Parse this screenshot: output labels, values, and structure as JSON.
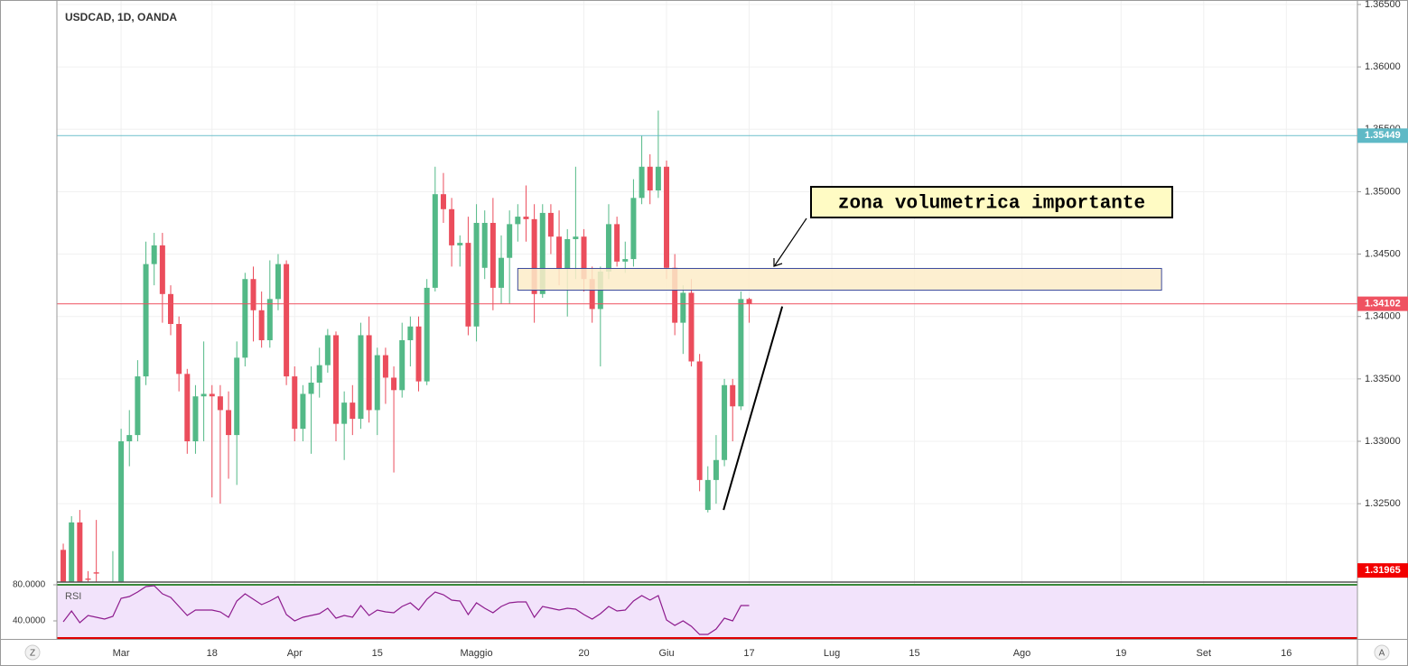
{
  "chart_data": {
    "type": "candlestick",
    "title": "USDCAD, 1D, OANDA",
    "up_color": "#53b987",
    "down_color": "#eb4d5c",
    "open": [
      1.3213,
      1.318,
      1.3235,
      1.319,
      1.3195,
      1.318,
      1.3186,
      1.318,
      1.33,
      1.3305,
      1.3352,
      1.3442,
      1.3457,
      1.3418,
      1.3394,
      1.3354,
      1.33,
      1.3336,
      1.3338,
      1.3336,
      1.3325,
      1.3305,
      1.3367,
      1.343,
      1.3405,
      1.3381,
      1.3414,
      1.3442,
      1.3352,
      1.331,
      1.3338,
      1.3347,
      1.3361,
      1.3385,
      1.3314,
      1.3331,
      1.3318,
      1.3385,
      1.3325,
      1.3369,
      1.3351,
      1.3341,
      1.3381,
      1.3392,
      1.3348,
      1.3423,
      1.3498,
      1.3486,
      1.3457,
      1.3459,
      1.3392,
      1.3439,
      1.3475,
      1.3423,
      1.3447,
      1.3474,
      1.348,
      1.3478,
      1.3418,
      1.3483,
      1.3464,
      1.3438,
      1.3462,
      1.3464,
      1.343,
      1.3406,
      1.3436,
      1.3474,
      1.3444,
      1.3446,
      1.3495,
      1.352,
      1.3501,
      1.352,
      1.3439,
      1.3395,
      1.3419,
      1.3364,
      1.3245,
      1.3269,
      1.3285,
      1.3345,
      1.3328,
      1.3414
    ],
    "high": [
      1.3218,
      1.324,
      1.3245,
      1.3196,
      1.3237,
      1.3185,
      1.3212,
      1.331,
      1.3325,
      1.3365,
      1.346,
      1.3467,
      1.3467,
      1.3425,
      1.34,
      1.3358,
      1.3345,
      1.338,
      1.3345,
      1.3345,
      1.334,
      1.338,
      1.3435,
      1.344,
      1.342,
      1.3445,
      1.345,
      1.3445,
      1.336,
      1.3345,
      1.336,
      1.3375,
      1.339,
      1.3388,
      1.334,
      1.3345,
      1.3395,
      1.34,
      1.3375,
      1.3375,
      1.336,
      1.3395,
      1.34,
      1.34,
      1.343,
      1.352,
      1.3515,
      1.3495,
      1.3465,
      1.348,
      1.349,
      1.3485,
      1.3495,
      1.3465,
      1.3485,
      1.349,
      1.3505,
      1.349,
      1.349,
      1.349,
      1.3485,
      1.347,
      1.352,
      1.347,
      1.344,
      1.344,
      1.349,
      1.348,
      1.346,
      1.351,
      1.3545,
      1.353,
      1.3565,
      1.3525,
      1.345,
      1.3425,
      1.343,
      1.337,
      1.328,
      1.3305,
      1.335,
      1.335,
      1.342,
      1.3415
    ],
    "low": [
      1.317,
      1.3175,
      1.3172,
      1.3175,
      1.318,
      1.317,
      1.3175,
      1.3175,
      1.328,
      1.33,
      1.3345,
      1.3425,
      1.3395,
      1.3385,
      1.334,
      1.329,
      1.329,
      1.33,
      1.3255,
      1.325,
      1.327,
      1.3265,
      1.336,
      1.338,
      1.3375,
      1.3375,
      1.3405,
      1.3345,
      1.33,
      1.33,
      1.329,
      1.3335,
      1.3355,
      1.33,
      1.3285,
      1.3305,
      1.331,
      1.3315,
      1.3305,
      1.333,
      1.3275,
      1.3335,
      1.336,
      1.334,
      1.3345,
      1.342,
      1.3475,
      1.344,
      1.344,
      1.3385,
      1.338,
      1.343,
      1.3405,
      1.341,
      1.341,
      1.346,
      1.346,
      1.3395,
      1.3415,
      1.345,
      1.3425,
      1.34,
      1.343,
      1.342,
      1.3395,
      1.336,
      1.343,
      1.344,
      1.3435,
      1.344,
      1.349,
      1.349,
      1.3495,
      1.343,
      1.3385,
      1.337,
      1.336,
      1.326,
      1.3243,
      1.325,
      1.328,
      1.33,
      1.3325,
      1.3395
    ],
    "close": [
      1.318,
      1.3235,
      1.318,
      1.3189,
      1.3194,
      1.3181,
      1.3187,
      1.33,
      1.3305,
      1.3352,
      1.3442,
      1.3457,
      1.3418,
      1.3394,
      1.3354,
      1.33,
      1.3336,
      1.3338,
      1.3336,
      1.3325,
      1.3305,
      1.3367,
      1.343,
      1.3405,
      1.3381,
      1.3414,
      1.3442,
      1.3352,
      1.331,
      1.3338,
      1.3347,
      1.3361,
      1.3385,
      1.3314,
      1.3331,
      1.3318,
      1.3385,
      1.3325,
      1.3369,
      1.3351,
      1.3341,
      1.3381,
      1.3392,
      1.3348,
      1.3423,
      1.3498,
      1.3486,
      1.3457,
      1.3459,
      1.3392,
      1.3475,
      1.3475,
      1.3423,
      1.3447,
      1.3474,
      1.348,
      1.3478,
      1.3418,
      1.3483,
      1.3464,
      1.3438,
      1.3462,
      1.3464,
      1.343,
      1.3406,
      1.3436,
      1.3474,
      1.3444,
      1.3446,
      1.3495,
      1.352,
      1.3501,
      1.352,
      1.3439,
      1.3395,
      1.3419,
      1.3364,
      1.3269,
      1.3269,
      1.3285,
      1.3345,
      1.3328,
      1.3414,
      1.341
    ],
    "xlim": [
      -0.77,
      156.6
    ],
    "xticks": [
      {
        "value": 7,
        "label": "Mar"
      },
      {
        "value": 18,
        "label": "18"
      },
      {
        "value": 28,
        "label": "Apr"
      },
      {
        "value": 38,
        "label": "15"
      },
      {
        "value": 50,
        "label": "Maggio"
      },
      {
        "value": 63,
        "label": "20"
      },
      {
        "value": 73,
        "label": "Giu"
      },
      {
        "value": 83,
        "label": "17"
      },
      {
        "value": 93,
        "label": "Lug"
      },
      {
        "value": 103,
        "label": "15"
      },
      {
        "value": 116,
        "label": "Ago"
      },
      {
        "value": 128,
        "label": "19"
      },
      {
        "value": 138,
        "label": "Set"
      },
      {
        "value": 148,
        "label": "16"
      }
    ],
    "ylim": [
      1.31872,
      1.36536
    ],
    "yticks": [
      {
        "value": 1.325,
        "label": "1.32500"
      },
      {
        "value": 1.33,
        "label": "1.33000"
      },
      {
        "value": 1.335,
        "label": "1.33500"
      },
      {
        "value": 1.34,
        "label": "1.34000"
      },
      {
        "value": 1.345,
        "label": "1.34500"
      },
      {
        "value": 1.35,
        "label": "1.35000"
      },
      {
        "value": 1.355,
        "label": "1.35500"
      },
      {
        "value": 1.36,
        "label": "1.36000"
      },
      {
        "value": 1.365,
        "label": "1.36500"
      }
    ],
    "grid": true,
    "levels": [
      {
        "value": 1.35449,
        "color": "#5fb9c6",
        "line": true
      },
      {
        "value": 1.34102,
        "color": "#ef5261",
        "line": true
      },
      {
        "value": 1.31965,
        "color": "#f20000",
        "line": false
      }
    ],
    "zone": {
      "x": [
        55.0,
        132.9
      ],
      "y": [
        1.34211,
        1.34385
      ],
      "fill": "#fdecc8",
      "stroke": "#3b4a9c"
    },
    "trendline": {
      "x": [
        79.9,
        87.0
      ],
      "y": [
        1.3245,
        1.3408
      ],
      "color": "#000000"
    },
    "annotation": "zona volumetrica importante",
    "rsi": {
      "title": "RSI",
      "color": "#8e1c8e",
      "values": [
        39,
        51,
        38,
        46,
        44,
        42,
        45,
        65,
        67,
        72,
        78,
        79,
        70,
        66,
        56,
        46,
        52,
        52,
        52,
        50,
        44,
        62,
        70,
        64,
        58,
        62,
        67,
        47,
        40,
        44,
        46,
        48,
        54,
        43,
        46,
        44,
        57,
        46,
        52,
        50,
        49,
        56,
        60,
        52,
        64,
        72,
        69,
        63,
        62,
        47,
        60,
        54,
        49,
        56,
        60,
        61,
        61,
        44,
        56,
        54,
        52,
        54,
        53,
        47,
        42,
        48,
        56,
        51,
        52,
        62,
        68,
        63,
        68,
        41,
        35,
        40,
        34,
        25,
        25,
        31,
        43,
        40,
        57,
        57
      ],
      "ylim": [
        20,
        83
      ],
      "yticks": [
        {
          "value": 80,
          "label": "80.0000"
        },
        {
          "value": 40,
          "label": "40.0000"
        }
      ]
    }
  },
  "ui": {
    "left_button": "Z",
    "right_button": "A"
  }
}
